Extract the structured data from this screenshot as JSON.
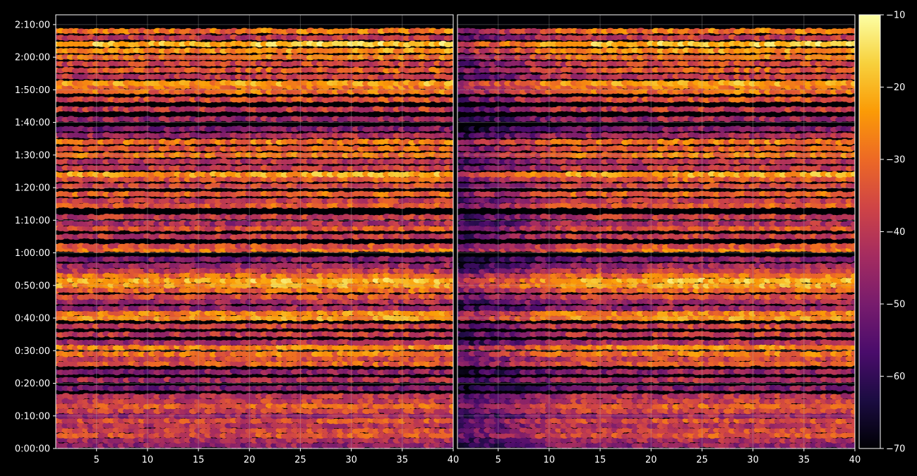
{
  "chart_data": {
    "type": "heatmap",
    "title": "",
    "xlabel": "",
    "ylabel": "",
    "grid": true,
    "background": "#000000",
    "panels": [
      {
        "name": "",
        "xlim": [
          1,
          40
        ],
        "xticks": [
          5,
          10,
          15,
          20,
          25,
          30,
          35,
          40
        ],
        "xtick_labels": [
          "5",
          "10",
          "15",
          "20",
          "25",
          "30",
          "35",
          "40"
        ]
      },
      {
        "name": "",
        "xlim": [
          1,
          40
        ],
        "xticks": [
          5,
          10,
          15,
          20,
          25,
          30,
          35,
          40
        ],
        "xtick_labels": [
          "5",
          "10",
          "15",
          "20",
          "25",
          "30",
          "35",
          "40"
        ]
      }
    ],
    "ylim_seconds": [
      0,
      7980
    ],
    "yticks_seconds": [
      0,
      600,
      1200,
      1800,
      2400,
      3000,
      3600,
      4200,
      4800,
      5400,
      6000,
      6600,
      7200,
      7800
    ],
    "ytick_labels": [
      "0:00:00",
      "0:10:00",
      "0:20:00",
      "0:30:00",
      "0:40:00",
      "0:50:00",
      "1:00:00",
      "1:10:00",
      "1:20:00",
      "1:30:00",
      "1:40:00",
      "1:50:00",
      "2:00:00",
      "2:10:00"
    ],
    "colorbar": {
      "colormap": "inferno",
      "range": [
        -70,
        -10
      ],
      "ticks": [
        -70,
        -60,
        -50,
        -40,
        -30,
        -20,
        -10
      ],
      "tick_labels": [
        "−70",
        "−60",
        "−50",
        "−40",
        "−30",
        "−20",
        "−10"
      ],
      "colormap_stops": [
        "#000004",
        "#1b0c41",
        "#4a0c6b",
        "#781c6d",
        "#a52c60",
        "#cf4446",
        "#ed6925",
        "#fb9b06",
        "#f7d13d",
        "#fcffa4"
      ]
    },
    "row_seconds": [
      60,
      150,
      240,
      330,
      420,
      510,
      600,
      690,
      780,
      870,
      960,
      1110,
      1260,
      1410,
      1560,
      1650,
      1740,
      1860,
      1950,
      2100,
      2250,
      2400,
      2490,
      2580,
      2700,
      2790,
      2910,
      3000,
      3090,
      3180,
      3270,
      3360,
      3480,
      3660,
      3720,
      3900,
      4050,
      4140,
      4260,
      4470,
      4560,
      4680,
      4830,
      4950,
      5040,
      5160,
      5280,
      5400,
      5520,
      5640,
      5760,
      5880,
      6060,
      6240,
      6420,
      6570,
      6660,
      6720,
      6840,
      6960,
      7080,
      7200,
      7320,
      7440,
      7560,
      7680
    ],
    "row_levels": [
      -48,
      -44,
      -36,
      -38,
      -42,
      -36,
      -46,
      -38,
      -34,
      -40,
      -42,
      -50,
      -44,
      -48,
      -34,
      -38,
      -30,
      -28,
      -44,
      -40,
      -38,
      -26,
      -28,
      -46,
      -44,
      -36,
      -32,
      -24,
      -22,
      -30,
      -40,
      -46,
      -50,
      -30,
      -36,
      -40,
      -36,
      -44,
      -40,
      -34,
      -40,
      -32,
      -38,
      -34,
      -24,
      -40,
      -42,
      -30,
      -34,
      -30,
      -44,
      -50,
      -46,
      -40,
      -36,
      -30,
      -30,
      -24,
      -40,
      -34,
      -38,
      -30,
      -26,
      -20,
      -40,
      -30
    ],
    "row_hot_segments": [
      [],
      [],
      [],
      [],
      [],
      [],
      [],
      [],
      [],
      [],
      [],
      [],
      [],
      [],
      [],
      [],
      [],
      [],
      [],
      [],
      [],
      [],
      [],
      [],
      [],
      [],
      [],
      [],
      [],
      [],
      [],
      [],
      [],
      [],
      [],
      [],
      [],
      [],
      [],
      [],
      [],
      [],
      [],
      [],
      [],
      [],
      [],
      [],
      [],
      [],
      [],
      [],
      [],
      [],
      [],
      [],
      [],
      [],
      [],
      [],
      [],
      [],
      [],
      [],
      [],
      []
    ]
  }
}
